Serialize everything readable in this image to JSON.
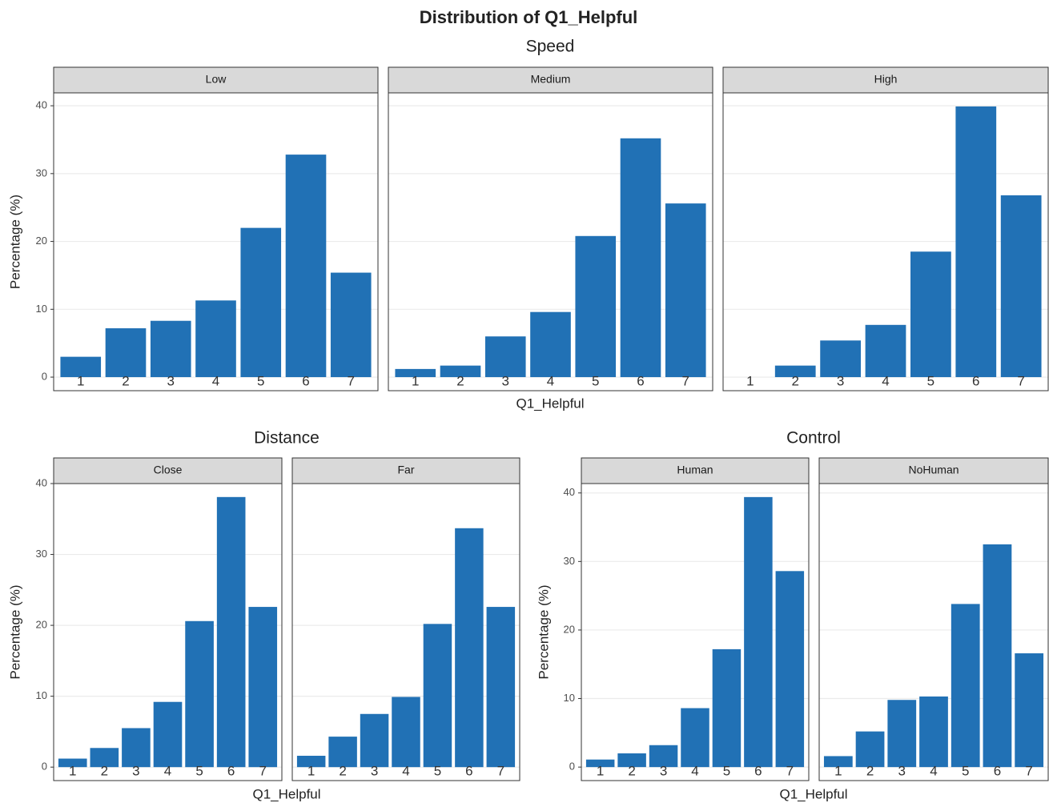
{
  "title": "Distribution of Q1_Helpful",
  "chart_data": [
    {
      "type": "bar",
      "title": "Speed",
      "xlabel": "Q1_Helpful",
      "ylabel": "Percentage (%)",
      "categories": [
        "1",
        "2",
        "3",
        "4",
        "5",
        "6",
        "7"
      ],
      "color": "#2171b5",
      "ylim": [
        -2,
        41.9
      ],
      "yticks": [
        0,
        10,
        20,
        30,
        40
      ],
      "grid": true,
      "series": [
        {
          "name": "Low",
          "values": [
            3,
            7.2,
            8.3,
            11.3,
            22,
            32.8,
            15.4
          ]
        },
        {
          "name": "Medium",
          "values": [
            1.2,
            1.7,
            6,
            9.6,
            20.8,
            35.2,
            25.6
          ]
        },
        {
          "name": "High",
          "values": [
            0,
            1.7,
            5.4,
            7.7,
            18.5,
            39.9,
            26.8
          ]
        }
      ]
    },
    {
      "type": "bar",
      "title": "Distance",
      "xlabel": "Q1_Helpful",
      "ylabel": "Percentage (%)",
      "categories": [
        "1",
        "2",
        "3",
        "4",
        "5",
        "6",
        "7"
      ],
      "color": "#2171b5",
      "ylim": [
        -1.9,
        40
      ],
      "yticks": [
        0,
        10,
        20,
        30,
        40
      ],
      "grid": true,
      "series": [
        {
          "name": "Close",
          "values": [
            1.2,
            2.7,
            5.5,
            9.2,
            20.6,
            38.1,
            22.6
          ]
        },
        {
          "name": "Far",
          "values": [
            1.6,
            4.3,
            7.5,
            9.9,
            20.2,
            33.7,
            22.6
          ]
        }
      ]
    },
    {
      "type": "bar",
      "title": "Control",
      "xlabel": "Q1_Helpful",
      "ylabel": "Percentage (%)",
      "categories": [
        "1",
        "2",
        "3",
        "4",
        "5",
        "6",
        "7"
      ],
      "color": "#2171b5",
      "ylim": [
        -1.97,
        41.37
      ],
      "yticks": [
        0,
        10,
        20,
        30,
        40
      ],
      "grid": true,
      "series": [
        {
          "name": "Human",
          "values": [
            1.1,
            2,
            3.2,
            8.6,
            17.2,
            39.4,
            28.6
          ]
        },
        {
          "name": "NoHuman",
          "values": [
            1.6,
            5.2,
            9.8,
            10.3,
            23.8,
            32.5,
            16.6
          ]
        }
      ]
    }
  ]
}
